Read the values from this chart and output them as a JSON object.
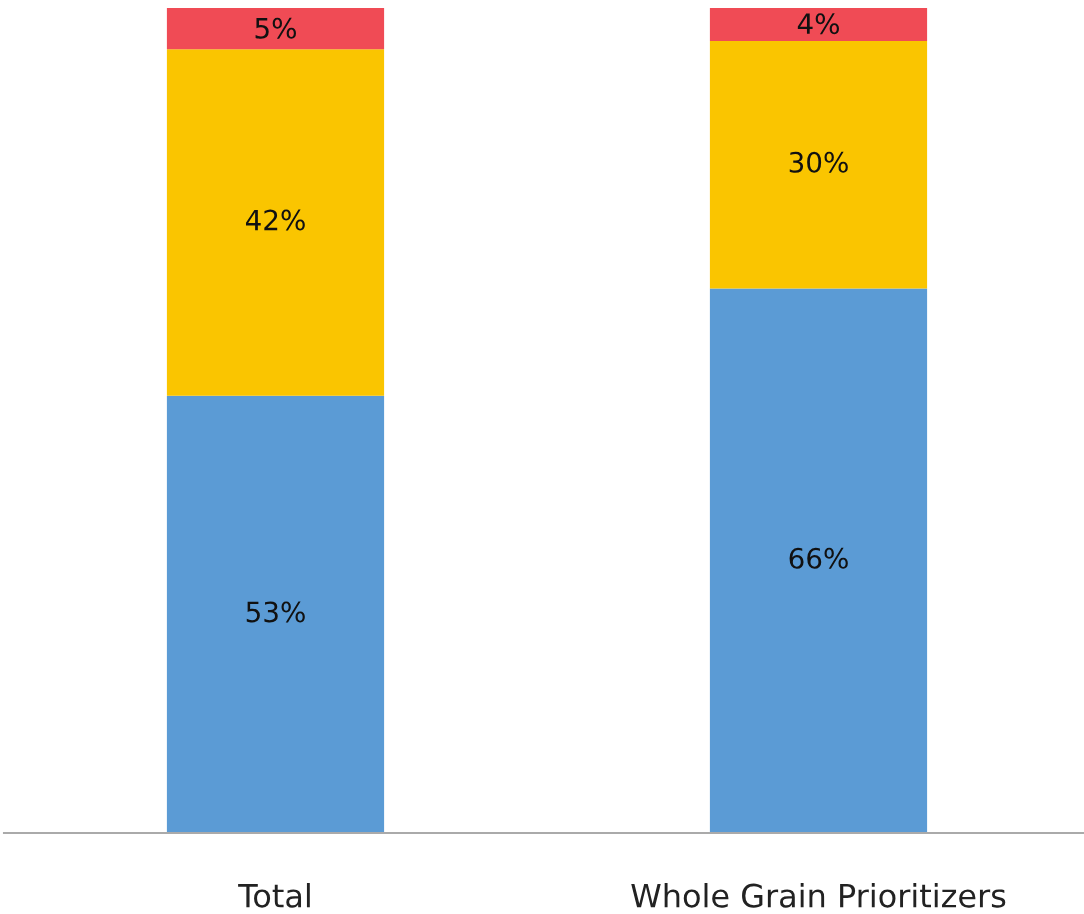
{
  "chart_data": {
    "type": "bar",
    "stacked": true,
    "categories": [
      "Total",
      "Whole Grain Prioritizers"
    ],
    "series": [
      {
        "color": "#5b9bd5",
        "values": [
          53,
          66
        ],
        "value_labels": [
          "53%",
          "66%"
        ]
      },
      {
        "color": "#fac500",
        "values": [
          42,
          30
        ],
        "value_labels": [
          "42%",
          "30%"
        ]
      },
      {
        "color": "#f04b55",
        "values": [
          5,
          4
        ],
        "value_labels": [
          "5%",
          "4%"
        ]
      }
    ],
    "ylim": [
      0,
      100
    ],
    "tick_labels": "x"
  }
}
